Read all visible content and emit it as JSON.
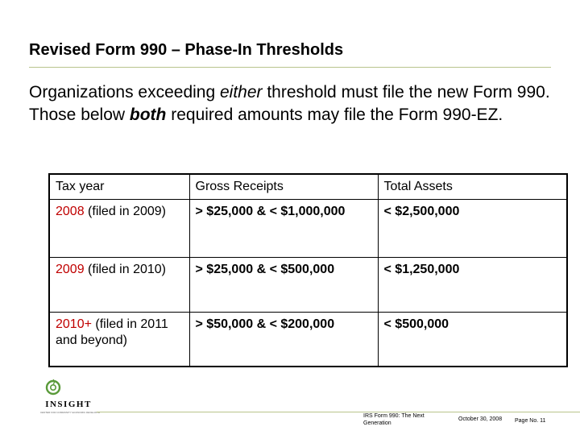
{
  "slide": {
    "title": "Revised Form 990 – Phase-In Thresholds",
    "body": {
      "part1": "Organizations exceeding ",
      "em1": "either",
      "part2": " threshold must file the new Form 990. Those below ",
      "em2": "both",
      "part3": " required amounts may file the Form 990-EZ."
    }
  },
  "table": {
    "headers": [
      "Tax year",
      "Gross Receipts",
      "Total Assets"
    ],
    "rows": [
      {
        "year": "2008",
        "filed": " (filed in 2009)",
        "receipts": "> $25,000 & < $1,000,000",
        "assets": "< $2,500,000"
      },
      {
        "year": "2009",
        "filed": " (filed in 2010)",
        "receipts": "> $25,000 & < $500,000",
        "assets": "< $1,250,000"
      },
      {
        "year": "2010+",
        "filed": " (filed in 2011 and beyond)",
        "receipts": "> $50,000 & < $200,000",
        "assets": "< $500,000"
      }
    ]
  },
  "logo": {
    "name": "INSIGHT",
    "subtitle": "CENTER FOR COMMUNITY ECONOMIC DEVELOPMENT",
    "color": "#5a9a3a"
  },
  "footer": {
    "presentation": "IRS Form 990: The Next Generation",
    "date": "October 30, 2008",
    "page": "Page No. 11"
  }
}
